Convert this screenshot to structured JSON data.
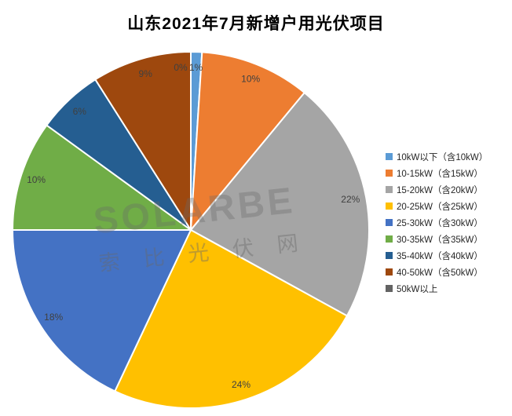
{
  "title": "山东2021年7月新增户用光伏项目",
  "watermark": {
    "line1": "SOLARBE",
    "line2": "索比光伏网"
  },
  "chart_data": {
    "type": "pie",
    "title": "山东2021年7月新增户用光伏项目",
    "unit": "percent",
    "legend_position": "right",
    "label_color": "#404040",
    "start_angle_deg": 0,
    "direction": "clockwise",
    "slices": [
      {
        "label": "10kW以下（含10kW）",
        "value": 1,
        "display": "1%",
        "color": "#5B9BD5"
      },
      {
        "label": "10-15kW（含15kW）",
        "value": 10,
        "display": "10%",
        "color": "#ED7D31"
      },
      {
        "label": "15-20kW（含20kW）",
        "value": 22,
        "display": "22%",
        "color": "#A5A5A5"
      },
      {
        "label": "20-25kW（含25kW）",
        "value": 24,
        "display": "24%",
        "color": "#FFC000"
      },
      {
        "label": "25-30kW（含30kW）",
        "value": 18,
        "display": "18%",
        "color": "#4472C4"
      },
      {
        "label": "30-35kW（含35kW）",
        "value": 10,
        "display": "10%",
        "color": "#70AD47"
      },
      {
        "label": "35-40kW（含40kW）",
        "value": 6,
        "display": "6%",
        "color": "#255E91"
      },
      {
        "label": "40-50kW（含50kW）",
        "value": 9,
        "display": "9%",
        "color": "#9E480E"
      },
      {
        "label": "50kW以上",
        "value": 0,
        "display": "0%",
        "color": "#636363"
      }
    ]
  }
}
